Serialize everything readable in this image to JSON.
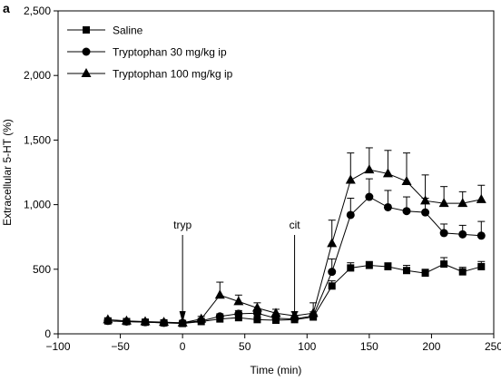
{
  "panel_label": "a",
  "chart_data": {
    "type": "line",
    "title": "",
    "xlabel": "Time (min)",
    "ylabel": "Extracellular 5-HT (%)",
    "xlim": [
      -100,
      250
    ],
    "ylim": [
      0,
      2500
    ],
    "x_ticks": [
      -100,
      -50,
      0,
      50,
      100,
      150,
      200,
      250
    ],
    "x_tick_labels": [
      "−100",
      "−50",
      "0",
      "50",
      "100",
      "150",
      "200",
      "250"
    ],
    "y_ticks": [
      0,
      500,
      1000,
      1500,
      2000,
      2500
    ],
    "y_tick_labels": [
      "0",
      "500",
      "1,000",
      "1,500",
      "2,000",
      "2,500"
    ],
    "grid": false,
    "legend_position": "top-left",
    "x": [
      -60,
      -45,
      -30,
      -15,
      0,
      15,
      30,
      45,
      60,
      75,
      90,
      105,
      120,
      135,
      150,
      165,
      180,
      195,
      210,
      225,
      240
    ],
    "series": [
      {
        "name": "Saline",
        "marker": "square",
        "values": [
          100,
          95,
          90,
          85,
          80,
          95,
          115,
          125,
          110,
          105,
          110,
          130,
          370,
          510,
          530,
          520,
          490,
          470,
          540,
          480,
          520
        ],
        "errors": [
          10,
          8,
          8,
          8,
          8,
          10,
          12,
          14,
          12,
          10,
          12,
          20,
          40,
          40,
          30,
          30,
          40,
          30,
          50,
          35,
          40
        ]
      },
      {
        "name": "Tryptophan 30 mg/kg ip",
        "marker": "circle",
        "values": [
          100,
          95,
          90,
          85,
          85,
          100,
          135,
          155,
          160,
          120,
          115,
          140,
          480,
          920,
          1060,
          980,
          950,
          940,
          780,
          770,
          760
        ],
        "errors": [
          10,
          10,
          10,
          8,
          8,
          10,
          20,
          25,
          20,
          15,
          15,
          30,
          100,
          130,
          140,
          130,
          110,
          110,
          70,
          70,
          110
        ]
      },
      {
        "name": "Tryptophan 100 mg/kg ip",
        "marker": "triangle",
        "values": [
          110,
          100,
          95,
          90,
          85,
          115,
          300,
          250,
          200,
          160,
          140,
          160,
          700,
          1190,
          1270,
          1240,
          1180,
          1030,
          1010,
          1010,
          1040
        ],
        "errors": [
          10,
          10,
          10,
          10,
          10,
          20,
          100,
          50,
          40,
          30,
          30,
          80,
          180,
          210,
          170,
          180,
          220,
          200,
          130,
          90,
          110
        ]
      }
    ],
    "annotations": [
      {
        "text": "tryp",
        "x": 0
      },
      {
        "text": "cit",
        "x": 90
      }
    ]
  }
}
